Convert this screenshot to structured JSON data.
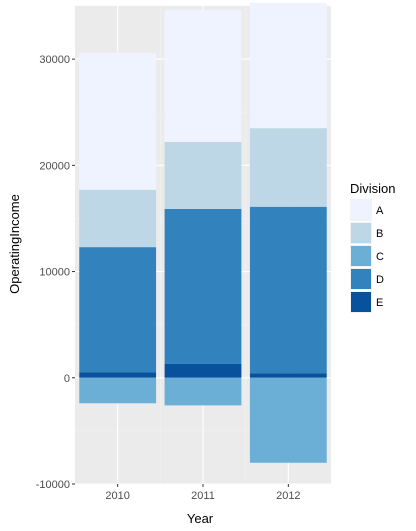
{
  "chart_data": {
    "type": "bar",
    "stacked": true,
    "xlabel": "Year",
    "ylabel": "OperatingIncome",
    "categories": [
      "2010",
      "2011",
      "2012"
    ],
    "ylim": [
      -10000,
      35000
    ],
    "yticks": [
      -10000,
      0,
      10000,
      20000,
      30000
    ],
    "ytick_labels": [
      "-10000",
      "0",
      "10000",
      "20000",
      "30000"
    ],
    "grid": true,
    "legend": {
      "title": "Division",
      "placement": "right",
      "entries": [
        "A",
        "B",
        "C",
        "D",
        "E"
      ]
    },
    "series": [
      {
        "name": "A",
        "color": "#eff3ff",
        "values": [
          12900,
          12400,
          11800
        ]
      },
      {
        "name": "B",
        "color": "#bdd7e7",
        "values": [
          5400,
          6300,
          7400
        ]
      },
      {
        "name": "C",
        "color": "#6baed6",
        "values": [
          -2400,
          -2600,
          -8000
        ]
      },
      {
        "name": "D",
        "color": "#3182bd",
        "values": [
          11800,
          14600,
          15700
        ]
      },
      {
        "name": "E",
        "color": "#08519c",
        "values": [
          500,
          1300,
          400
        ]
      }
    ]
  },
  "colors": {
    "panel_background": "#ebebeb",
    "grid_major": "#ffffff",
    "grid_minor": "#f2f2f2"
  }
}
